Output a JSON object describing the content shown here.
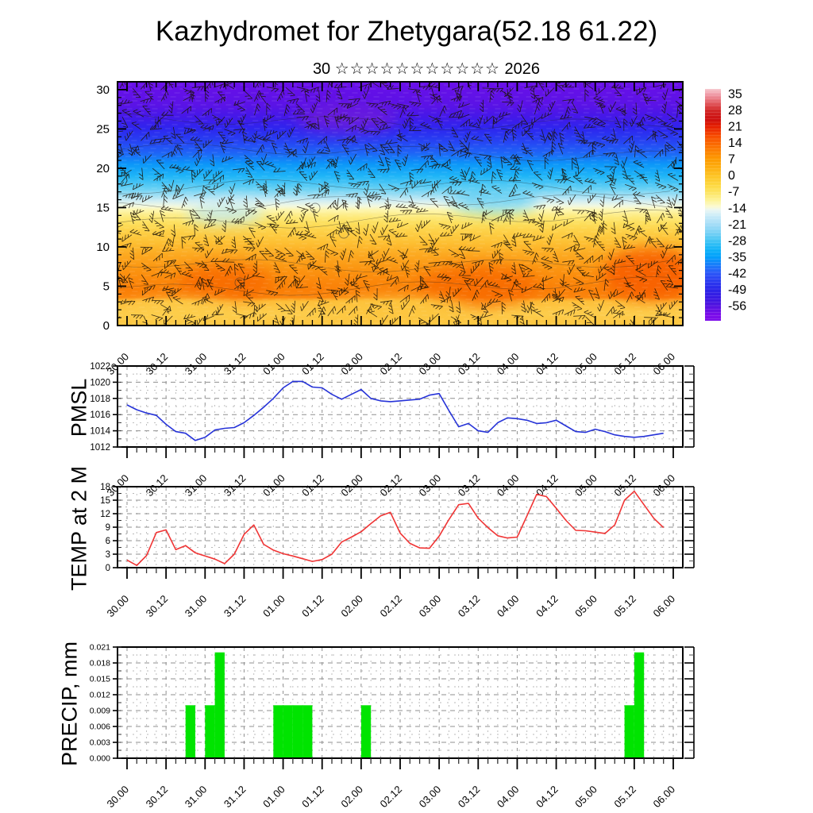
{
  "header": {
    "title": "Kazhydromet for Zhetygara(52.18 61.22)",
    "subtitle_day": "30",
    "subtitle_stars": "☆☆☆☆☆☆☆☆☆☆☆",
    "subtitle_year": "2026"
  },
  "timeline": {
    "tick_labels_12h": [
      "30.00",
      "30.12",
      "31.00",
      "31.12",
      "01.00",
      "01.12",
      "02.00",
      "02.12",
      "03.00",
      "03.12",
      "04.00",
      "04.12",
      "05.00",
      "05.12",
      "06.00"
    ],
    "points_3h": [
      "30.00",
      "30.03",
      "30.06",
      "30.09",
      "30.12",
      "30.15",
      "30.18",
      "30.21",
      "31.00",
      "31.03",
      "31.06",
      "31.09",
      "31.12",
      "31.15",
      "31.18",
      "31.21",
      "01.00",
      "01.03",
      "01.06",
      "01.09",
      "01.12",
      "01.15",
      "01.18",
      "01.21",
      "02.00",
      "02.03",
      "02.06",
      "02.09",
      "02.12",
      "02.15",
      "02.18",
      "02.21",
      "03.00",
      "03.03",
      "03.06",
      "03.09",
      "03.12",
      "03.15",
      "03.18",
      "03.21",
      "04.00",
      "04.03",
      "04.06",
      "04.09",
      "04.12",
      "04.15",
      "04.18",
      "04.21",
      "05.00",
      "05.03",
      "05.06",
      "05.09",
      "05.12",
      "05.15",
      "05.18",
      "05.21"
    ]
  },
  "colors": {
    "pmsl_line": "#2633d8",
    "temp_line": "#f03434",
    "precip_bar": "#00e400",
    "grid_minor": "#b8b8b8",
    "grid_major": "#8f8f8f",
    "axis": "#000000",
    "barb": "#1b1206"
  },
  "chart_data": [
    {
      "id": "wind_cross_section",
      "type": "heatmap",
      "panel_title": "",
      "ylabel": "height",
      "ylim": [
        0,
        31
      ],
      "y_ticks": [
        0,
        5,
        10,
        15,
        20,
        25,
        30
      ],
      "overlay": "wind-barbs",
      "colorbar_ticks": [
        35,
        28,
        21,
        14,
        7,
        0,
        -7,
        -14,
        -21,
        -28,
        -35,
        -42,
        -49,
        -56
      ],
      "colorbar_stops": [
        {
          "t": 37,
          "c": "#f6c6cd"
        },
        {
          "t": 34,
          "c": "#ee8f9c"
        },
        {
          "t": 31,
          "c": "#e25a60"
        },
        {
          "t": 28,
          "c": "#d22828"
        },
        {
          "t": 24,
          "c": "#cd0f0f"
        },
        {
          "t": 21,
          "c": "#e51e00"
        },
        {
          "t": 17,
          "c": "#f64a00"
        },
        {
          "t": 14,
          "c": "#fa6400"
        },
        {
          "t": 10,
          "c": "#fc8400"
        },
        {
          "t": 7,
          "c": "#fd9900"
        },
        {
          "t": 3,
          "c": "#fdb012"
        },
        {
          "t": 0,
          "c": "#fdc223"
        },
        {
          "t": -4,
          "c": "#fdd73e"
        },
        {
          "t": -7,
          "c": "#fde35e"
        },
        {
          "t": -11,
          "c": "#fdf49c"
        },
        {
          "t": -13.5,
          "c": "#fbfad2"
        },
        {
          "t": -15,
          "c": "#e9f6f4"
        },
        {
          "t": -18,
          "c": "#c4e9f8"
        },
        {
          "t": -21,
          "c": "#a5ddf7"
        },
        {
          "t": -25,
          "c": "#74d0f5"
        },
        {
          "t": -28,
          "c": "#45c5f4"
        },
        {
          "t": -32,
          "c": "#0fb2f8"
        },
        {
          "t": -35,
          "c": "#01a0fb"
        },
        {
          "t": -39,
          "c": "#1b78fa"
        },
        {
          "t": -42,
          "c": "#2b57f8"
        },
        {
          "t": -46,
          "c": "#2b38f0"
        },
        {
          "t": -49,
          "c": "#2a25e8"
        },
        {
          "t": -53,
          "c": "#3b18e2"
        },
        {
          "t": -56,
          "c": "#5212e0"
        },
        {
          "t": -60,
          "c": "#7c0cea"
        }
      ],
      "field_color_profile": [
        {
          "h": 31,
          "c": "#6a0fe8"
        },
        {
          "h": 28,
          "c": "#5a13e6"
        },
        {
          "h": 26.5,
          "c": "#4318e8"
        },
        {
          "h": 25,
          "c": "#2d26ee"
        },
        {
          "h": 23.5,
          "c": "#2741f2"
        },
        {
          "h": 22,
          "c": "#1f63f6"
        },
        {
          "h": 20.5,
          "c": "#0b97f8"
        },
        {
          "h": 19,
          "c": "#1fb5f7"
        },
        {
          "h": 17.5,
          "c": "#63cff4"
        },
        {
          "h": 16.5,
          "c": "#a3e0f4"
        },
        {
          "h": 15.8,
          "c": "#d4eef2"
        },
        {
          "h": 15.2,
          "c": "#f2f8e0"
        },
        {
          "h": 14.7,
          "c": "#fdf6b0"
        },
        {
          "h": 14,
          "c": "#fdec84"
        },
        {
          "h": 13,
          "c": "#fddf5c"
        },
        {
          "h": 12,
          "c": "#fdd148"
        },
        {
          "h": 10.5,
          "c": "#fdbf32"
        },
        {
          "h": 9,
          "c": "#fca921"
        },
        {
          "h": 7.5,
          "c": "#fb9813"
        },
        {
          "h": 6,
          "c": "#fb8a0c"
        },
        {
          "h": 4.5,
          "c": "#fa7f07"
        },
        {
          "h": 3.6,
          "c": "#fb850d"
        },
        {
          "h": 3.1,
          "c": "#fdbe38"
        },
        {
          "h": 1.5,
          "c": "#fdcd4c"
        },
        {
          "h": 0,
          "c": "#fdc53e"
        }
      ],
      "temp_profile_estimate": [
        {
          "h": 0,
          "t": 2
        },
        {
          "h": 5,
          "t": 8
        },
        {
          "h": 12,
          "t": 0
        },
        {
          "h": 14,
          "t": -7
        },
        {
          "h": 15.5,
          "t": -14
        },
        {
          "h": 18,
          "t": -22
        },
        {
          "h": 20,
          "t": -30
        },
        {
          "h": 22,
          "t": -40
        },
        {
          "h": 24,
          "t": -49
        },
        {
          "h": 26,
          "t": -56
        },
        {
          "h": 31,
          "t": -62
        }
      ]
    },
    {
      "id": "pmsl",
      "type": "line",
      "title": "PMSL",
      "ylim": [
        1012,
        1022
      ],
      "y_ticks": [
        1012,
        1014,
        1016,
        1018,
        1020,
        1022
      ],
      "values": [
        1017.2,
        1016.6,
        1016.2,
        1015.9,
        1014.8,
        1013.9,
        1013.7,
        1012.8,
        1013.2,
        1014.1,
        1014.3,
        1014.4,
        1015.0,
        1015.9,
        1016.9,
        1018.0,
        1019.3,
        1020.1,
        1020.1,
        1019.4,
        1019.3,
        1018.5,
        1017.9,
        1018.5,
        1019.1,
        1018.0,
        1017.7,
        1017.6,
        1017.7,
        1017.8,
        1017.9,
        1018.4,
        1018.6,
        1016.5,
        1014.5,
        1014.9,
        1014.0,
        1013.8,
        1015.0,
        1015.6,
        1015.5,
        1015.3,
        1014.9,
        1015.0,
        1015.3,
        1014.6,
        1013.9,
        1013.8,
        1014.2,
        1013.9,
        1013.5,
        1013.3,
        1013.2,
        1013.3,
        1013.5,
        1013.7
      ]
    },
    {
      "id": "temp_2m",
      "type": "line",
      "title": "TEMP at 2 M",
      "ylim": [
        0,
        18
      ],
      "y_ticks": [
        0,
        3,
        6,
        9,
        12,
        15,
        18
      ],
      "values": [
        1.7,
        0.5,
        2.7,
        7.8,
        8.4,
        4.0,
        4.9,
        3.3,
        2.6,
        1.9,
        0.9,
        3.0,
        7.4,
        9.5,
        5.2,
        3.9,
        3.1,
        2.6,
        2.0,
        1.4,
        1.8,
        3.0,
        5.7,
        6.8,
        8.0,
        9.8,
        11.5,
        12.3,
        7.7,
        5.4,
        4.4,
        4.3,
        7.0,
        10.7,
        14.0,
        14.3,
        11.0,
        8.9,
        7.1,
        6.6,
        6.8,
        11.5,
        16.3,
        15.8,
        13.2,
        10.5,
        8.3,
        8.2,
        7.9,
        7.6,
        9.5,
        15.0,
        17.0,
        14.0,
        11.0,
        8.9
      ]
    },
    {
      "id": "precip",
      "type": "bar",
      "title": "PRECIP, mm",
      "ylim": [
        0,
        0.021
      ],
      "y_tick_labels": [
        "0.000",
        "0.003",
        "0.006",
        "0.009",
        "0.012",
        "0.015",
        "0.018",
        "0.021"
      ],
      "values": [
        0,
        0,
        0,
        0,
        0,
        0,
        0.01,
        0,
        0.01,
        0.02,
        0,
        0,
        0,
        0,
        0,
        0.01,
        0.01,
        0.01,
        0.01,
        0,
        0,
        0,
        0,
        0,
        0.01,
        0,
        0,
        0,
        0,
        0,
        0,
        0,
        0,
        0,
        0,
        0,
        0,
        0,
        0,
        0,
        0,
        0,
        0,
        0,
        0,
        0,
        0,
        0,
        0,
        0,
        0,
        0.01,
        0.02,
        0,
        0,
        0
      ]
    }
  ]
}
